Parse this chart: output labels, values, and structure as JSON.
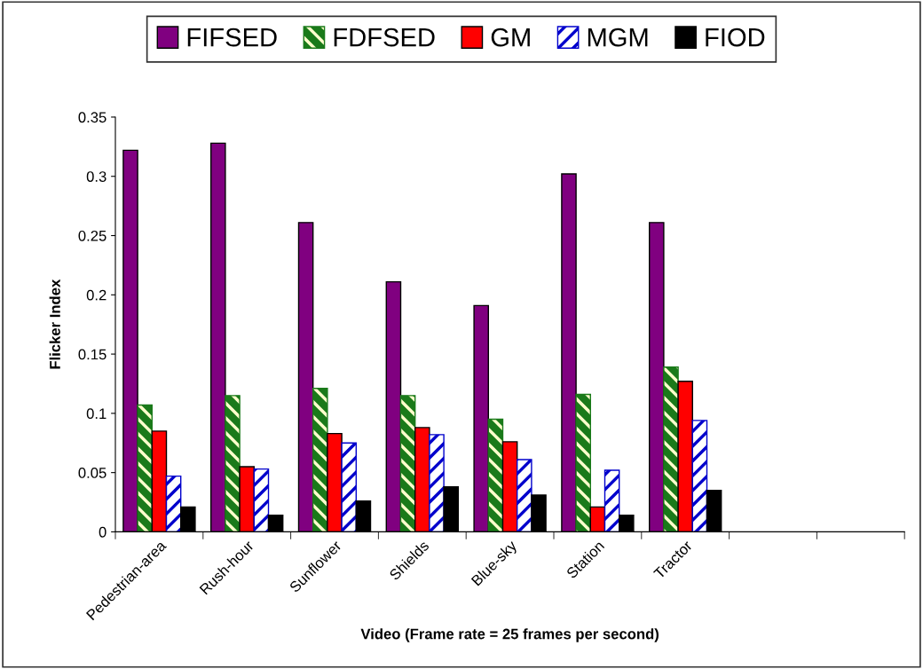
{
  "chart_data": {
    "type": "bar",
    "categories": [
      "Pedestrian-area",
      "Rush-hour",
      "Sunflower",
      "Shields",
      "Blue-sky",
      "Station",
      "Tractor",
      null,
      null
    ],
    "series": [
      {
        "name": "FIFSED",
        "color": "#800080",
        "values": [
          0.322,
          0.328,
          0.261,
          0.211,
          0.191,
          0.302,
          0.261,
          null,
          null
        ]
      },
      {
        "name": "FDFSED",
        "color": "#1a7a1a",
        "values": [
          0.107,
          0.115,
          0.121,
          0.115,
          0.095,
          0.116,
          0.139,
          null,
          null
        ]
      },
      {
        "name": "GM",
        "color": "#ff0000",
        "values": [
          0.085,
          0.055,
          0.083,
          0.088,
          0.076,
          0.021,
          0.127,
          null,
          null
        ]
      },
      {
        "name": "MGM",
        "color": "#0000cc",
        "values": [
          0.047,
          0.053,
          0.075,
          0.082,
          0.061,
          0.052,
          0.094,
          null,
          null
        ]
      },
      {
        "name": "FIOD",
        "color": "#000000",
        "values": [
          0.021,
          0.014,
          0.026,
          0.038,
          0.031,
          0.014,
          0.035,
          null,
          null
        ]
      }
    ],
    "xlabel": "Video (Frame rate = 25 frames per second)",
    "ylabel": "Flicker Index",
    "ylim": [
      0,
      0.35
    ],
    "yticks": [
      {
        "value": 0,
        "label": "0"
      },
      0.05,
      0.1,
      0.15,
      0.2,
      0.25,
      0.3,
      0.35
    ],
    "grid": false,
    "legend": "top"
  }
}
